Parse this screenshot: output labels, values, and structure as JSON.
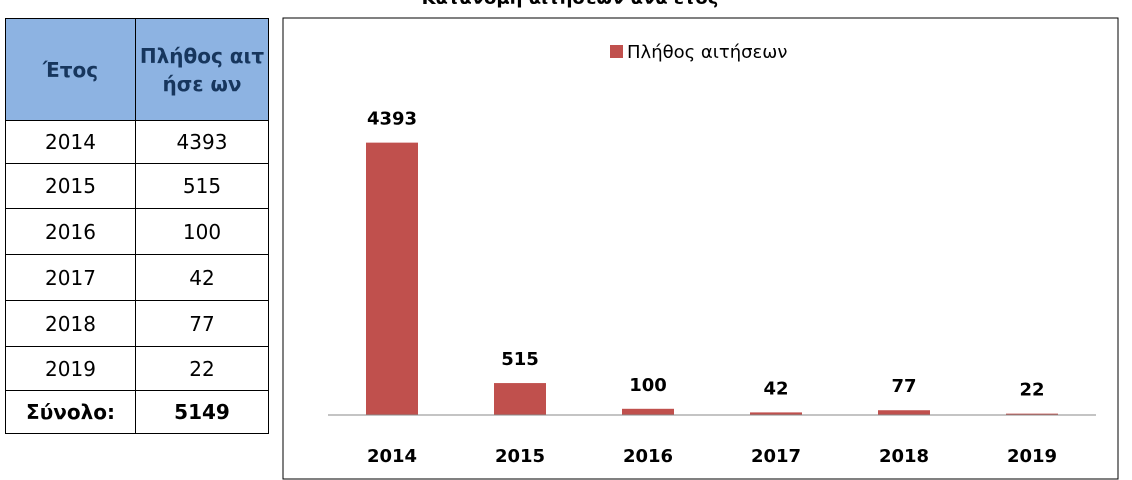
{
  "table": {
    "header": [
      "Έτος",
      "Πλήθος αιτήσε ων"
    ],
    "rows": [
      [
        "2014",
        "4393"
      ],
      [
        "2015",
        "515"
      ],
      [
        "2016",
        "100"
      ],
      [
        "2017",
        "42"
      ],
      [
        "2018",
        "77"
      ],
      [
        "2019",
        "22"
      ]
    ],
    "total": [
      "Σύνολο:",
      "5149"
    ]
  },
  "chart_data": {
    "type": "bar",
    "title": "Κατανομή αιτήσεων ανά έτος",
    "categories": [
      "2014",
      "2015",
      "2016",
      "2017",
      "2018",
      "2019"
    ],
    "series": [
      {
        "name": "Πλήθος αιτήσεων",
        "color": "#c0504d",
        "values": [
          4393,
          515,
          100,
          42,
          77,
          22
        ]
      }
    ],
    "ylim": [
      0,
      5000
    ],
    "legend": "top"
  }
}
